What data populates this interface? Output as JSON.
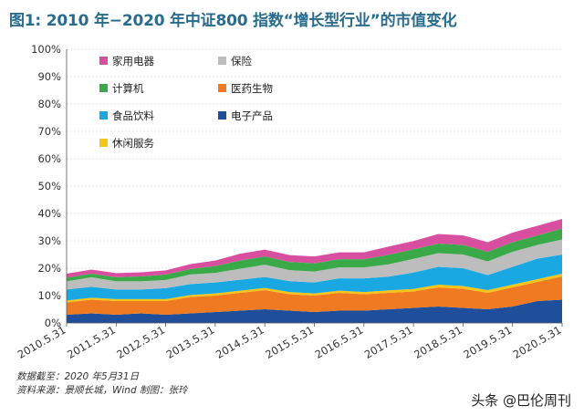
{
  "chart_data": {
    "type": "area",
    "stacked": true,
    "title": "图1: 2010 年−2020 年中证800 指数“增长型行业”的市值变化",
    "ylim": [
      0,
      100
    ],
    "y_ticks": [
      "0%",
      "10%",
      "20%",
      "30%",
      "40%",
      "50%",
      "60%",
      "70%",
      "80%",
      "90%",
      "100%"
    ],
    "x_tick_labels": [
      "2010.5.31",
      "2011.5.31",
      "2012.5.31",
      "2013.5.31",
      "2014.5.31",
      "2015.5.31",
      "2016.5.31",
      "2017.5.31",
      "2018.5.31",
      "2019.5.31",
      "2020.5.31"
    ],
    "x": [
      2010.0,
      2010.5,
      2011.0,
      2011.5,
      2012.0,
      2012.5,
      2013.0,
      2013.5,
      2014.0,
      2014.5,
      2015.0,
      2015.5,
      2016.0,
      2016.5,
      2017.0,
      2017.5,
      2018.0,
      2018.5,
      2019.0,
      2019.5,
      2020.0
    ],
    "grid": true,
    "legend_position": "top-left",
    "series": [
      {
        "name": "电子产品",
        "color": "#1f4e9a",
        "values": [
          3,
          3.5,
          3,
          3.5,
          3,
          3.5,
          4,
          4.5,
          5,
          4.5,
          4,
          4.5,
          4.5,
          5,
          5.5,
          6,
          5.5,
          5,
          6,
          8,
          8.5
        ]
      },
      {
        "name": "医药生物",
        "color": "#f07a21",
        "values": [
          4.5,
          5,
          5,
          4.5,
          5,
          6,
          6,
          6.5,
          7,
          6,
          6,
          6.5,
          6,
          6,
          6,
          7,
          7,
          6,
          7,
          7,
          8.5
        ]
      },
      {
        "name": "休闲服务",
        "color": "#f5c518",
        "values": [
          0.7,
          0.7,
          0.7,
          0.7,
          0.7,
          0.7,
          0.8,
          0.8,
          0.8,
          0.8,
          0.8,
          0.8,
          0.8,
          0.9,
          0.9,
          1.0,
          1.0,
          1.0,
          1.0,
          1.0,
          1.0
        ]
      },
      {
        "name": "食品饮料",
        "color": "#1aa8e2",
        "values": [
          4,
          4,
          3.5,
          3.5,
          4,
          4,
          4,
          4,
          4,
          4,
          4,
          4.5,
          5,
          5,
          6,
          6.5,
          6.5,
          5.5,
          6.5,
          7.5,
          7
        ]
      },
      {
        "name": "保险",
        "color": "#bdbdbd",
        "values": [
          3,
          3.5,
          3,
          3,
          3,
          3.5,
          3.5,
          4,
          4.5,
          4,
          4,
          4,
          4,
          4.5,
          5,
          5,
          5,
          5,
          5.5,
          5,
          5.5
        ]
      },
      {
        "name": "计算机",
        "color": "#3aaa48",
        "values": [
          1.3,
          1.3,
          1.5,
          1.8,
          2,
          2,
          2.5,
          3,
          3,
          3,
          3,
          3,
          3,
          3.5,
          3.5,
          3.5,
          3.5,
          3.5,
          3.5,
          3.5,
          4
        ]
      },
      {
        "name": "家用电器",
        "color": "#d94f9f",
        "values": [
          1.5,
          1.5,
          1.5,
          1.5,
          1.5,
          1.8,
          2,
          2.5,
          2.5,
          2.5,
          2.5,
          2.5,
          2.5,
          3,
          3,
          3.5,
          3.5,
          3.5,
          3.5,
          3.5,
          3.5
        ]
      }
    ],
    "legend_order": [
      "家用电器",
      "保险",
      "计算机",
      "医药生物",
      "食品饮料",
      "电子产品",
      "休闲服务"
    ]
  },
  "footnotes": {
    "line1": "数据截至：2020 年5月31日",
    "line2": "资料来源：景顺长城，Wind        制图：张玲"
  },
  "watermark": "头条 @巴伦周刊"
}
